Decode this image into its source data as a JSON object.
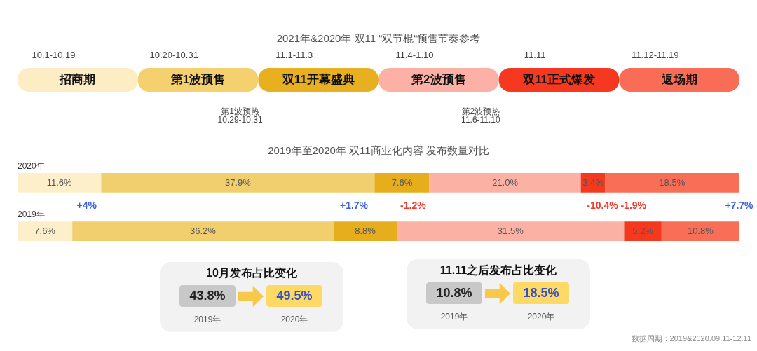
{
  "chart_data": [
    {
      "type": "other",
      "title": "2021年&2020年 双11 “双节棍“预售节奏参考",
      "categories": [
        "招商期",
        "第1波预售",
        "双11开幕盛典",
        "第2波预售",
        "双11正式爆发",
        "返场期"
      ],
      "colors": [
        "#fdedc4",
        "#f4d06f",
        "#e8b021",
        "#fdb1a6",
        "#f5381f",
        "#f96c55"
      ],
      "annotations": [
        {
          "text": "10.1-10.19",
          "x": "招商期"
        },
        {
          "text": "10.20-10.31",
          "x": "第1波预售"
        },
        {
          "text": "11.1-11.3",
          "x": "双11开幕盛典"
        },
        {
          "text": "11.4-1.10",
          "x": "第2波预售"
        },
        {
          "text": "11.11",
          "x": "双11正式爆发"
        },
        {
          "text": "11.12-11.19",
          "x": "返场期"
        },
        {
          "text": "第1波预热",
          "x": "第1波预售"
        },
        {
          "text": "10.29-10.31",
          "x": "第1波预售"
        },
        {
          "text": "第2波预热",
          "x": "第2波预售"
        },
        {
          "text": "11.6-11.10",
          "x": "第2波预售"
        }
      ]
    },
    {
      "type": "bar",
      "orientation": "horizontal",
      "stacked": true,
      "title": "2019年至2020年 双11商业化内容 发布数量对比",
      "categories": [
        "2020年",
        "2019年"
      ],
      "series": [
        {
          "color": "#fdefc9",
          "values": [
            11.6,
            7.6
          ],
          "value_labels": [
            "11.6%",
            "7.6%"
          ]
        },
        {
          "color": "#f2cf6e",
          "values": [
            37.9,
            36.2
          ],
          "value_labels": [
            "37.9%",
            "36.2%"
          ]
        },
        {
          "color": "#e6ad1c",
          "values": [
            7.6,
            8.8
          ],
          "value_labels": [
            "7.6%",
            "8.8%"
          ]
        },
        {
          "color": "#fcb1a5",
          "values": [
            21.0,
            31.5
          ],
          "value_labels": [
            "21.0%",
            "31.5%"
          ]
        },
        {
          "color": "#f5391f",
          "values": [
            3.4,
            5.2
          ],
          "value_labels": [
            "3.4%",
            "5.2%"
          ]
        },
        {
          "color": "#f96e57",
          "values": [
            18.5,
            10.8
          ],
          "value_labels": [
            "18.5%",
            "10.8%"
          ]
        }
      ],
      "annotations": [
        "+4%",
        "+1.7%",
        "-1.2%",
        "-10.4%",
        "-1.9%",
        "+7.7%"
      ]
    },
    {
      "type": "other",
      "title": "10月发布占比变化",
      "categories": [
        "2019年",
        "2020年"
      ],
      "values": [
        43.8,
        49.5
      ],
      "value_labels": [
        "43.8%",
        "49.5%"
      ]
    },
    {
      "type": "other",
      "title": "11.11之后发布占比变化",
      "categories": [
        "2019年",
        "2020年"
      ],
      "values": [
        10.8,
        18.5
      ],
      "value_labels": [
        "10.8%",
        "18.5%"
      ],
      "annotations": [
        "数据周期：2019&2020.09.11-12.11"
      ]
    }
  ]
}
